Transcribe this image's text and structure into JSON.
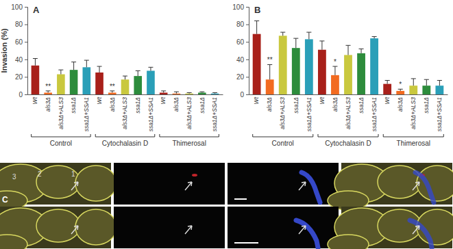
{
  "chart_data": [
    {
      "type": "bar",
      "panel": "A",
      "y_label": "Invasion (%)",
      "categories": [
        "Wt",
        "als3Δ",
        "als3Δ+ALS3",
        "ssa1Δ",
        "ssa1Δ+SSA1",
        "Wt",
        "als3Δ",
        "als3Δ+ALS3",
        "ssa1Δ",
        "ssa1Δ+SSA1",
        "Wt",
        "als3Δ",
        "als3Δ+ALS3",
        "ssa1Δ",
        "ssa1Δ+SSA1"
      ],
      "groups": [
        "Control",
        "Cytochalasin D",
        "Thimerosal"
      ],
      "values": [
        33,
        2,
        23,
        28,
        31,
        25,
        2,
        17,
        21,
        27,
        2,
        1,
        1,
        2,
        1
      ],
      "errors": [
        8,
        2,
        5,
        9,
        8,
        7,
        2,
        4,
        6,
        4,
        2,
        2,
        1,
        1,
        1
      ],
      "annotations": [
        null,
        "**",
        null,
        null,
        null,
        null,
        "**",
        null,
        null,
        null,
        null,
        null,
        null,
        null,
        null
      ],
      "colors": [
        "#a8201a",
        "#f26b21",
        "#c9c83e",
        "#2d8c3c",
        "#2a9fb8",
        "#a8201a",
        "#f26b21",
        "#c9c83e",
        "#2d8c3c",
        "#2a9fb8",
        "#a8201a",
        "#f26b21",
        "#c9c83e",
        "#2d8c3c",
        "#2a9fb8"
      ],
      "ylim": [
        0,
        100
      ],
      "yticks": [
        0,
        20,
        40,
        60,
        80,
        100
      ]
    },
    {
      "type": "bar",
      "panel": "B",
      "categories": [
        "Wt",
        "als3Δ",
        "als3Δ+ALS3",
        "ssa1Δ",
        "ssa1Δ+SSA1",
        "Wt",
        "als3Δ",
        "als3Δ+ALS3",
        "ssa1Δ",
        "ssa1Δ+SSA1",
        "Wt",
        "als3Δ",
        "als3Δ+ALS3",
        "ssa1Δ",
        "ssa1Δ+SSA1"
      ],
      "groups": [
        "Control",
        "Cytochalasin D",
        "Thimerosal"
      ],
      "values": [
        69,
        17,
        67,
        53,
        63,
        51,
        22,
        45,
        47,
        64,
        12,
        4,
        10,
        10,
        10
      ],
      "errors": [
        15,
        17,
        4,
        11,
        8,
        10,
        10,
        11,
        5,
        2,
        4,
        2,
        8,
        7,
        6
      ],
      "annotations": [
        null,
        "**",
        null,
        null,
        null,
        null,
        "*",
        null,
        null,
        null,
        null,
        "*",
        null,
        null,
        null
      ],
      "colors": [
        "#a8201a",
        "#f26b21",
        "#c9c83e",
        "#2d8c3c",
        "#2a9fb8",
        "#a8201a",
        "#f26b21",
        "#c9c83e",
        "#2d8c3c",
        "#2a9fb8",
        "#a8201a",
        "#f26b21",
        "#c9c83e",
        "#2d8c3c",
        "#2a9fb8"
      ],
      "ylim": [
        0,
        100
      ],
      "yticks": [
        0,
        20,
        40,
        60,
        80,
        100
      ]
    }
  ],
  "panel_c": {
    "label": "C",
    "cell_labels": [
      "3",
      "2",
      "1"
    ]
  }
}
